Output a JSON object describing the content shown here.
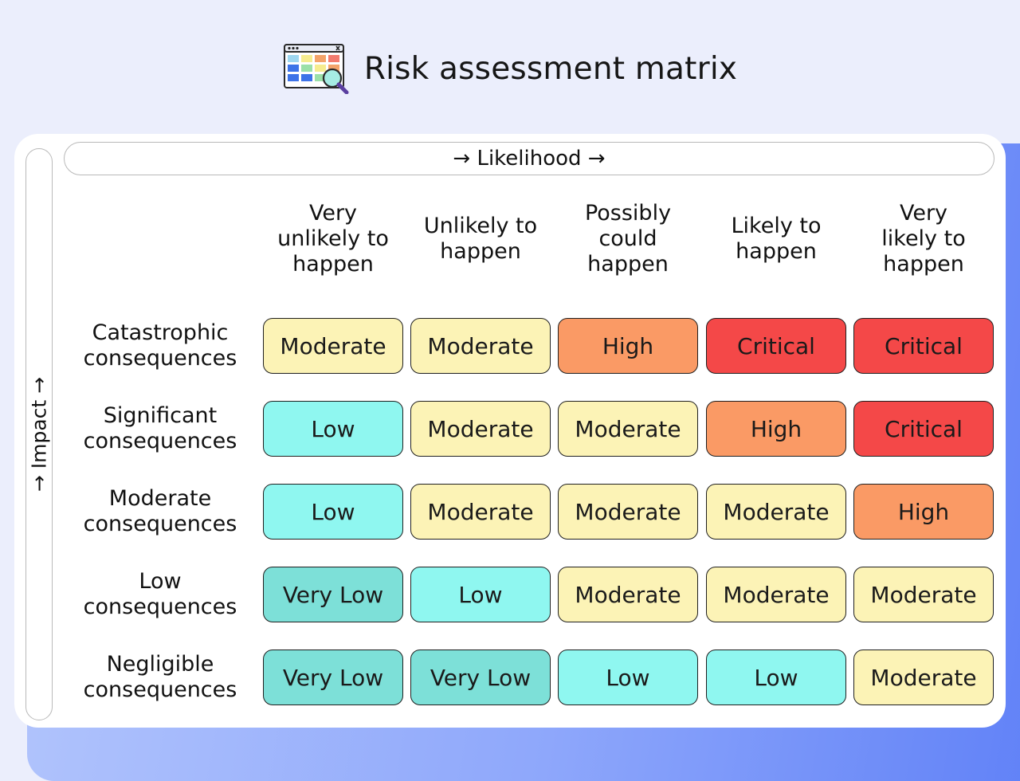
{
  "title": "Risk assessment matrix",
  "axes": {
    "likelihood": "→ Likelihood →",
    "impact": "→ Impact →"
  },
  "columns": [
    "Very\nunlikely to\nhappen",
    "Unlikely to\nhappen",
    "Possibly\ncould\nhappen",
    "Likely to\nhappen",
    "Very\nlikely to\nhappen"
  ],
  "rows": [
    {
      "label": "Catastrophic\nconsequences",
      "cells": [
        "Moderate",
        "Moderate",
        "High",
        "Critical",
        "Critical"
      ]
    },
    {
      "label": "Significant\nconsequences",
      "cells": [
        "Low",
        "Moderate",
        "Moderate",
        "High",
        "Critical"
      ]
    },
    {
      "label": "Moderate\nconsequences",
      "cells": [
        "Low",
        "Moderate",
        "Moderate",
        "Moderate",
        "High"
      ]
    },
    {
      "label": "Low\nconsequences",
      "cells": [
        "Very Low",
        "Low",
        "Moderate",
        "Moderate",
        "Moderate"
      ]
    },
    {
      "label": "Negligible\nconsequences",
      "cells": [
        "Very Low",
        "Very Low",
        "Low",
        "Low",
        "Moderate"
      ]
    }
  ],
  "level_colors": {
    "Very Low": "#7de0d8",
    "Low": "#8ff7f0",
    "Moderate": "#fcf3b6",
    "High": "#fa9a65",
    "Critical": "#f44848"
  },
  "header_icon": "spreadsheet-magnifier-icon"
}
